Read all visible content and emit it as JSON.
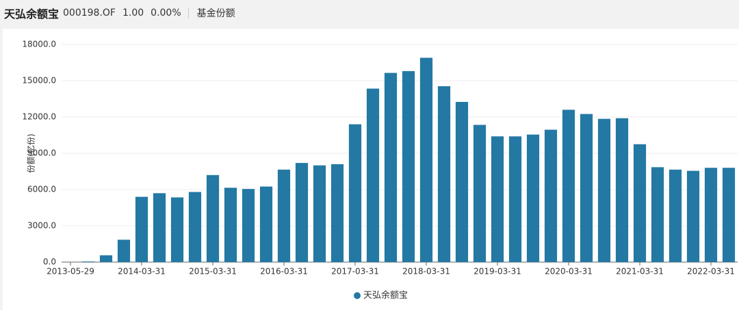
{
  "header": {
    "name": "天弘余额宝",
    "code": "000198.OF",
    "price": "1.00",
    "change": "0.00%",
    "tab": "基金份额"
  },
  "chart_data": {
    "type": "bar",
    "y_label": "份额(亿份)",
    "categories": [
      "2013-05-29",
      null,
      null,
      null,
      "2014-03-31",
      null,
      null,
      null,
      "2015-03-31",
      null,
      null,
      null,
      "2016-03-31",
      null,
      null,
      null,
      "2017-03-31",
      null,
      null,
      null,
      "2018-03-31",
      null,
      null,
      null,
      "2019-03-31",
      null,
      null,
      null,
      "2020-03-31",
      null,
      null,
      null,
      "2021-03-31",
      null,
      null,
      null,
      "2022-03-31",
      null
    ],
    "series": [
      {
        "name": "天弘余额宝",
        "color": "#2379a3",
        "values": [
          2,
          50,
          560,
          1850,
          5400,
          5700,
          5350,
          5800,
          7200,
          6150,
          6050,
          6250,
          7650,
          8200,
          8000,
          8100,
          11400,
          14350,
          15650,
          15800,
          16900,
          14550,
          13250,
          11350,
          10400,
          10400,
          10550,
          10950,
          12600,
          12250,
          11850,
          11900,
          9750,
          7850,
          7650,
          7550,
          7800,
          7800
        ]
      }
    ],
    "ylim": [
      0,
      18000
    ],
    "yticks": [
      {
        "value": 0,
        "label": "0.0"
      },
      {
        "value": 3000,
        "label": "3000.0"
      },
      {
        "value": 6000,
        "label": "6000.0"
      },
      {
        "value": 9000,
        "label": "9000.0"
      },
      {
        "value": 12000,
        "label": "12000.0"
      },
      {
        "value": 15000,
        "label": "15000.0"
      },
      {
        "value": 18000,
        "label": "18000.0"
      }
    ],
    "grid": true,
    "legend": "bottom"
  }
}
